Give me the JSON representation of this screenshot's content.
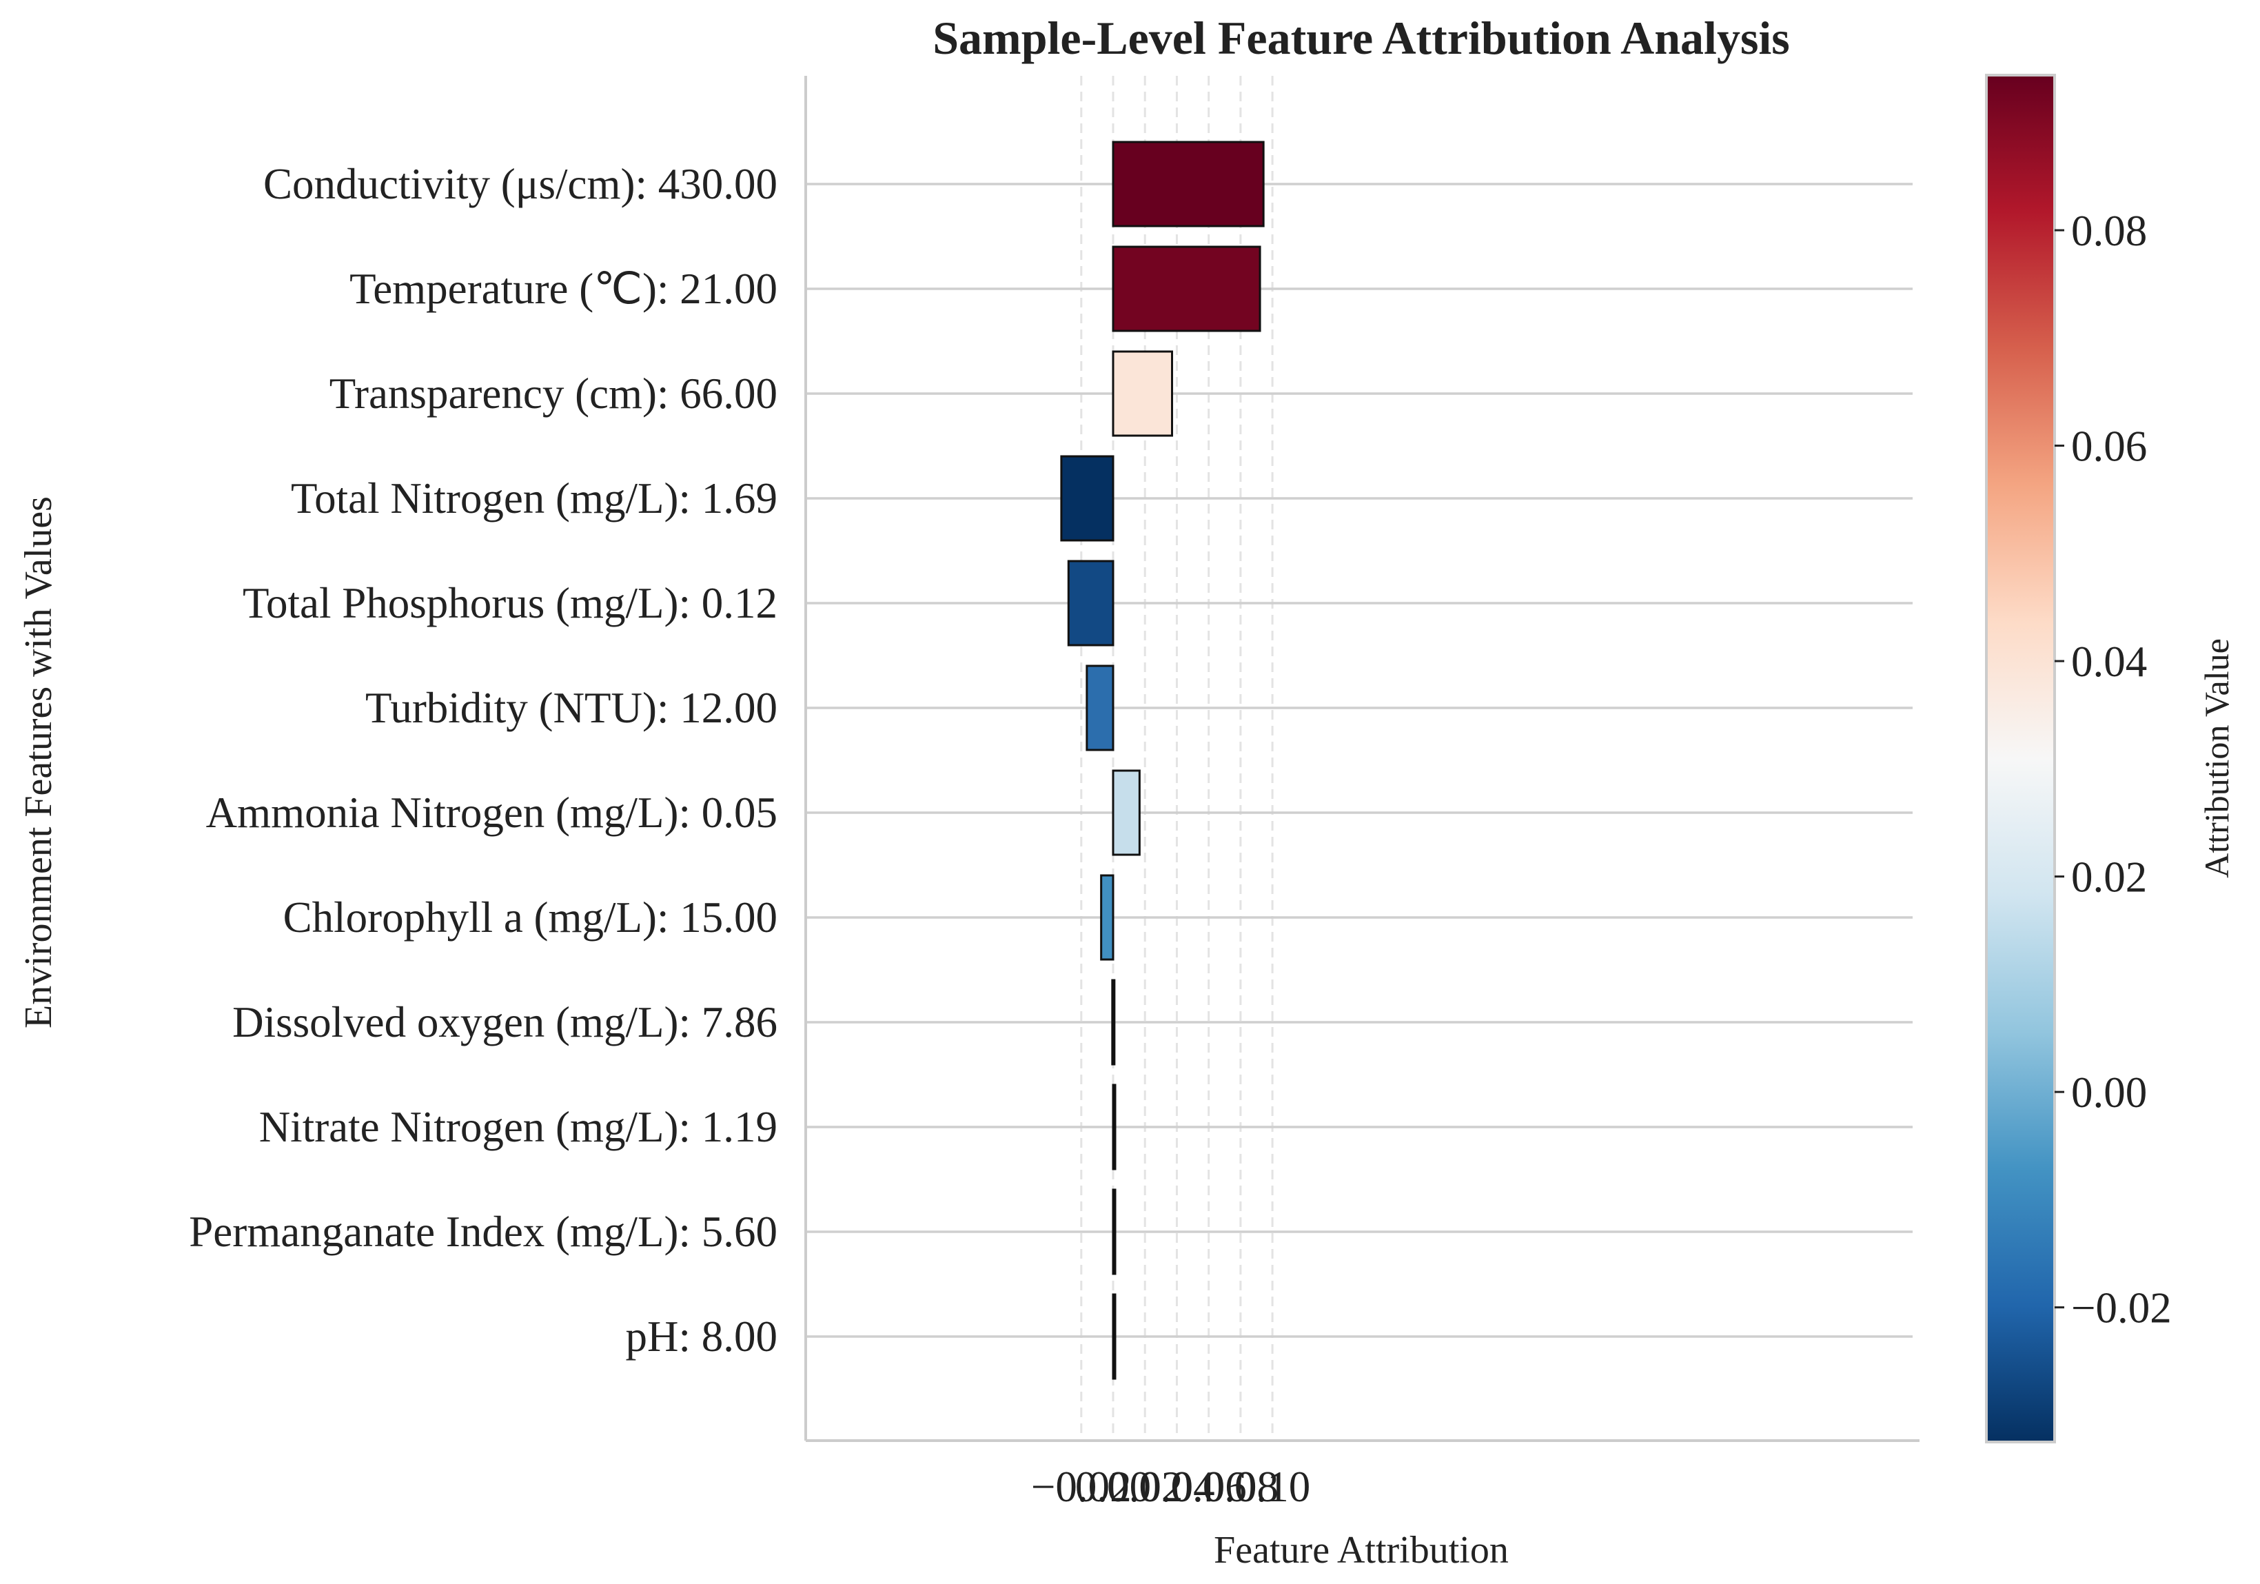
{
  "chart_data": {
    "type": "bar",
    "orientation": "horizontal",
    "title": "Sample-Level Feature Attribution Analysis",
    "xlabel": "Feature Attribution",
    "ylabel": "Environment Features with Values",
    "xlim": [
      -0.0385,
      0.1005
    ],
    "xticks": [
      -0.02,
      0.0,
      0.02,
      0.04,
      0.06,
      0.08,
      0.1
    ],
    "xtick_labels": [
      "−0.02",
      "0.00",
      "0.02",
      "0.04",
      "0.06",
      "0.08",
      "0.10"
    ],
    "grid": true,
    "categories": [
      "Conductivity (μs/cm): 430.00",
      "Temperature (℃): 21.00",
      "Transparency (cm): 66.00",
      "Total Nitrogen (mg/L): 1.69",
      "Total Phosphorus (mg/L): 0.12",
      "Turbidity (NTU): 12.00",
      "Ammonia Nitrogen (mg/L): 0.05",
      "Chlorophyll a (mg/L): 15.00",
      "Dissolved oxygen (mg/L): 7.86",
      "Nitrate Nitrogen (mg/L): 1.19",
      "Permanganate Index (mg/L): 5.60",
      "pH: 8.00"
    ],
    "values": [
      0.0944,
      0.0922,
      0.037,
      -0.0325,
      -0.028,
      -0.0165,
      0.0166,
      -0.0075,
      -0.0005,
      0.0004,
      0.0001,
      0.0
    ],
    "colors": [
      "#67001f",
      "#730421",
      "#fbe5d8",
      "#053061",
      "#124984",
      "#2c6ead",
      "#c6deeb",
      "#4190c2",
      "#2166ac",
      "#0b3b70",
      "#ffffff",
      "#ffffff"
    ],
    "colorbar": {
      "label": "Attribution Value",
      "range": [
        -0.0325,
        0.0944
      ],
      "colormap": "RdBu_r",
      "ticks": [
        -0.02,
        0.0,
        0.02,
        0.04,
        0.06,
        0.08
      ],
      "tick_labels": [
        "−0.02",
        "0.00",
        "0.02",
        "0.04",
        "0.06",
        "0.08"
      ]
    }
  }
}
